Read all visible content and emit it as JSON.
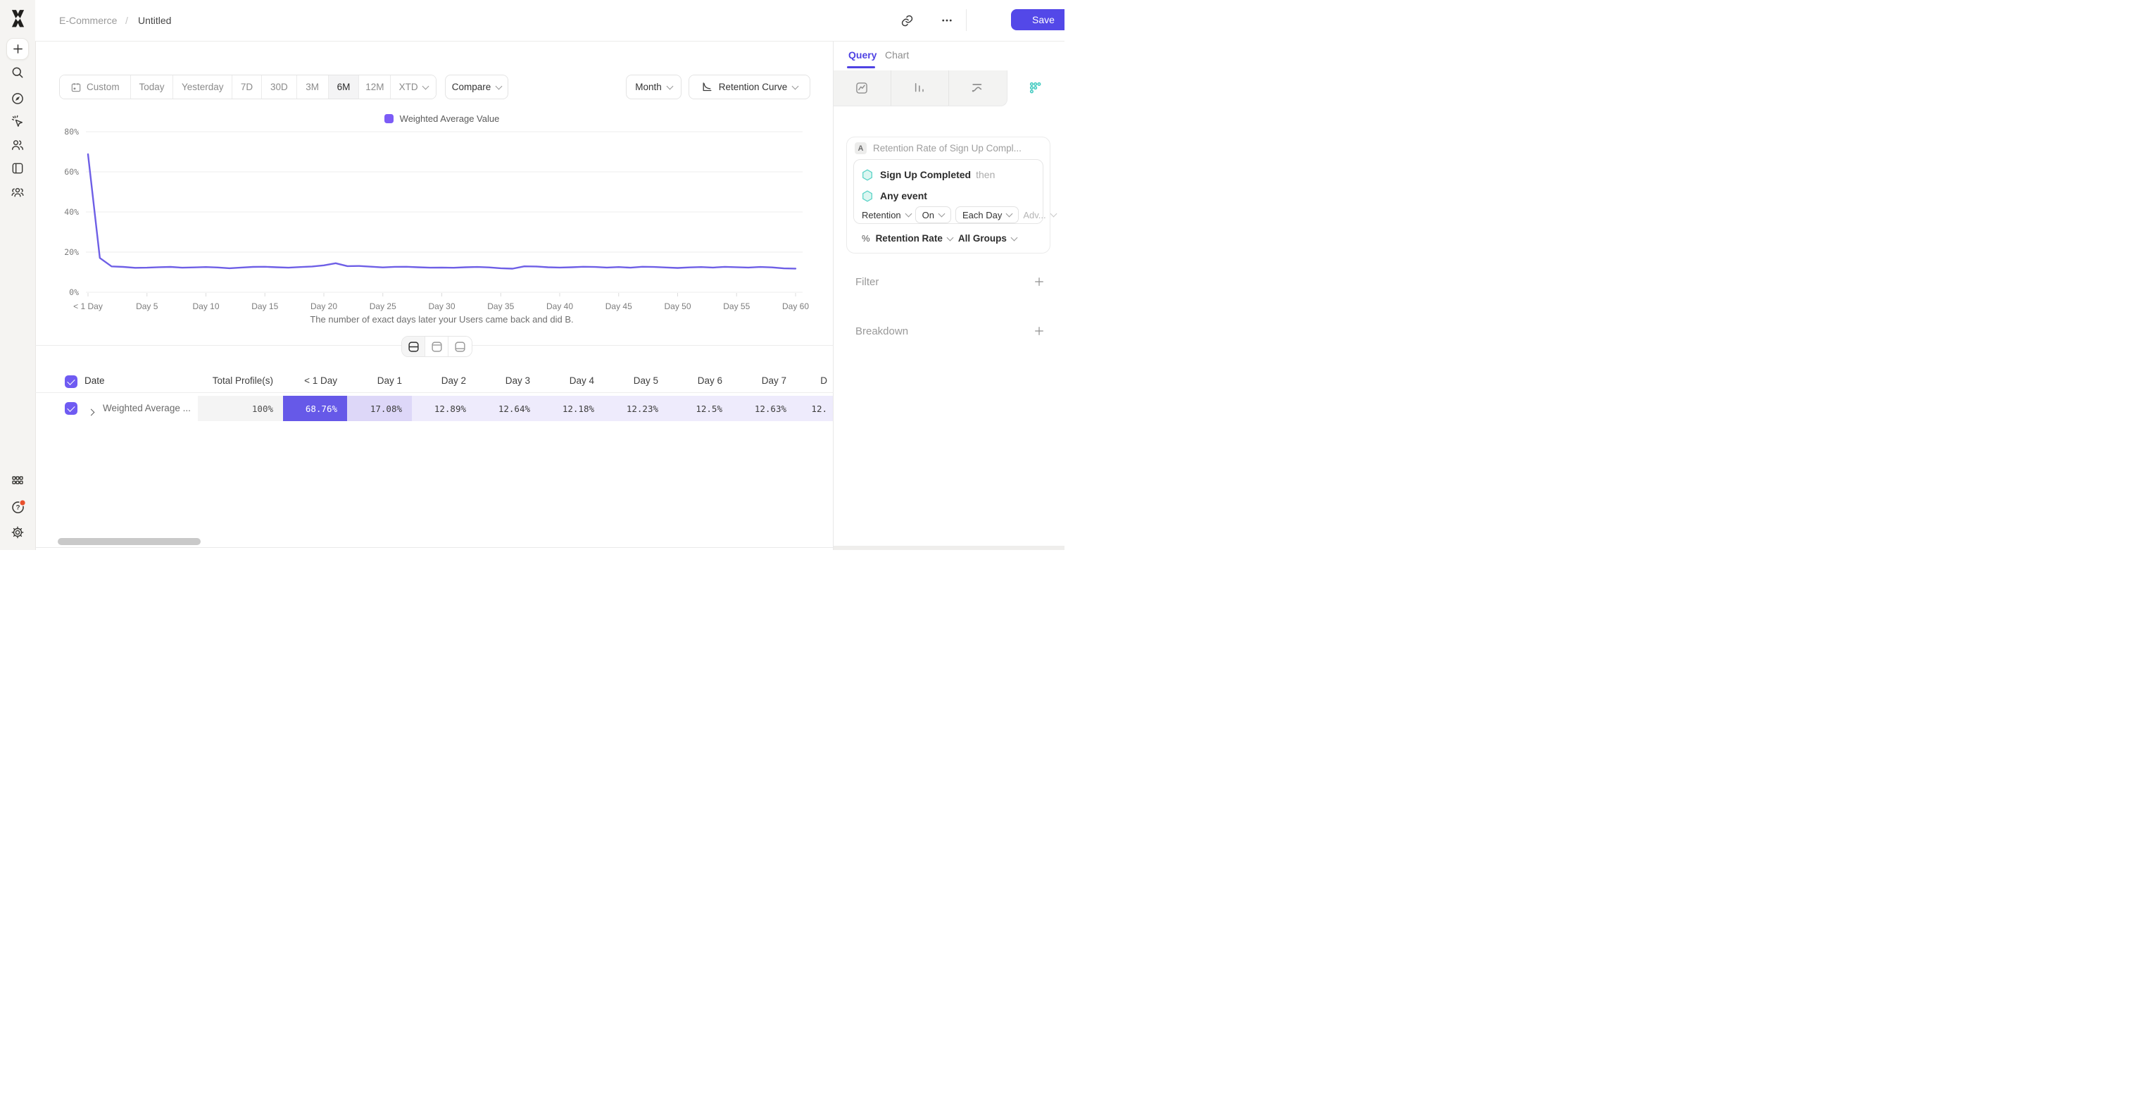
{
  "header": {
    "breadcrumb": [
      "E-Commerce",
      "Untitled"
    ],
    "separator": "/",
    "save": "Save"
  },
  "sidebar": {
    "icons": [
      "mixpanel-logo",
      "plus",
      "search",
      "compass",
      "quick-actions",
      "users",
      "boards",
      "cohorts",
      "apps-grid",
      "help",
      "settings"
    ],
    "help_badge_color": "#e8502d"
  },
  "toolbar": {
    "date_ranges": [
      "Custom",
      "Today",
      "Yesterday",
      "7D",
      "30D",
      "3M",
      "6M",
      "12M",
      "XTD"
    ],
    "active_range": "6M",
    "compare": "Compare",
    "granularity": "Month",
    "chart_type": "Retention Curve"
  },
  "chart_data": {
    "type": "line",
    "title": "",
    "legend_position": "top",
    "grid": true,
    "xlabel": "The number of exact days later your Users came back and did B.",
    "ylim": [
      0,
      80
    ],
    "y_ticks": [
      "0%",
      "20%",
      "40%",
      "60%",
      "80%"
    ],
    "y_tick_values": [
      0,
      20,
      40,
      60,
      80
    ],
    "x_tick_labels": [
      "< 1 Day",
      "Day 5",
      "Day 10",
      "Day 15",
      "Day 20",
      "Day 25",
      "Day 30",
      "Day 35",
      "Day 40",
      "Day 45",
      "Day 50",
      "Day 55",
      "Day 60"
    ],
    "x_unit": "day",
    "series": [
      {
        "name": "Weighted Average Value",
        "color": "#6e5fe6",
        "values": [
          68.76,
          17.08,
          12.89,
          12.64,
          12.18,
          12.23,
          12.5,
          12.63,
          12.25,
          12.4,
          12.55,
          12.35,
          11.95,
          12.3,
          12.62,
          12.7,
          12.45,
          12.25,
          12.55,
          12.85,
          13.4,
          14.45,
          13.0,
          13.1,
          12.75,
          12.4,
          12.65,
          12.7,
          12.45,
          12.25,
          12.3,
          12.2,
          12.45,
          12.6,
          12.4,
          11.95,
          11.75,
          12.9,
          12.85,
          12.45,
          12.3,
          12.45,
          12.7,
          12.6,
          12.3,
          12.55,
          12.25,
          12.7,
          12.6,
          12.35,
          12.1,
          12.4,
          12.55,
          12.3,
          12.65,
          12.5,
          12.3,
          12.6,
          12.4,
          11.9,
          11.8
        ]
      }
    ],
    "legend_swatch_color": "#7c5cf6"
  },
  "table": {
    "headers": [
      "Date",
      "Total Profile(s)",
      "< 1 Day",
      "Day 1",
      "Day 2",
      "Day 3",
      "Day 4",
      "Day 5",
      "Day 6",
      "Day 7",
      "D"
    ],
    "rows": [
      {
        "checked": true,
        "label": "Weighted Average ...",
        "values": [
          "100%",
          "68.76%",
          "17.08%",
          "12.89%",
          "12.64%",
          "12.18%",
          "12.23%",
          "12.5%",
          "12.63%",
          "12."
        ]
      }
    ]
  },
  "query_panel": {
    "tabs": [
      {
        "label": "Query",
        "active": true
      },
      {
        "label": "Chart",
        "active": false
      }
    ],
    "report_icons": [
      "insights-icon",
      "funnels-icon",
      "flows-icon",
      "retention-icon"
    ],
    "active_report": "retention",
    "metric": {
      "badge": "A",
      "title": "Retention Rate of Sign Up Compl..."
    },
    "steps": [
      {
        "event": "Sign Up Completed",
        "suffix": "then"
      },
      {
        "event": "Any event",
        "suffix": ""
      }
    ],
    "controls": [
      {
        "label": "Retention"
      },
      {
        "label": "On"
      },
      {
        "label": "Each Day"
      },
      {
        "label": "Adv..."
      }
    ],
    "measurement": {
      "symbol": "%",
      "metric": "Retention Rate",
      "segment": "All Groups"
    },
    "sections": [
      {
        "label": "Filter"
      },
      {
        "label": "Breakdown"
      }
    ]
  },
  "colors": {
    "accent": "#5348e8",
    "teal": "#45cbc1",
    "cell_highlight": "#6659e8"
  }
}
